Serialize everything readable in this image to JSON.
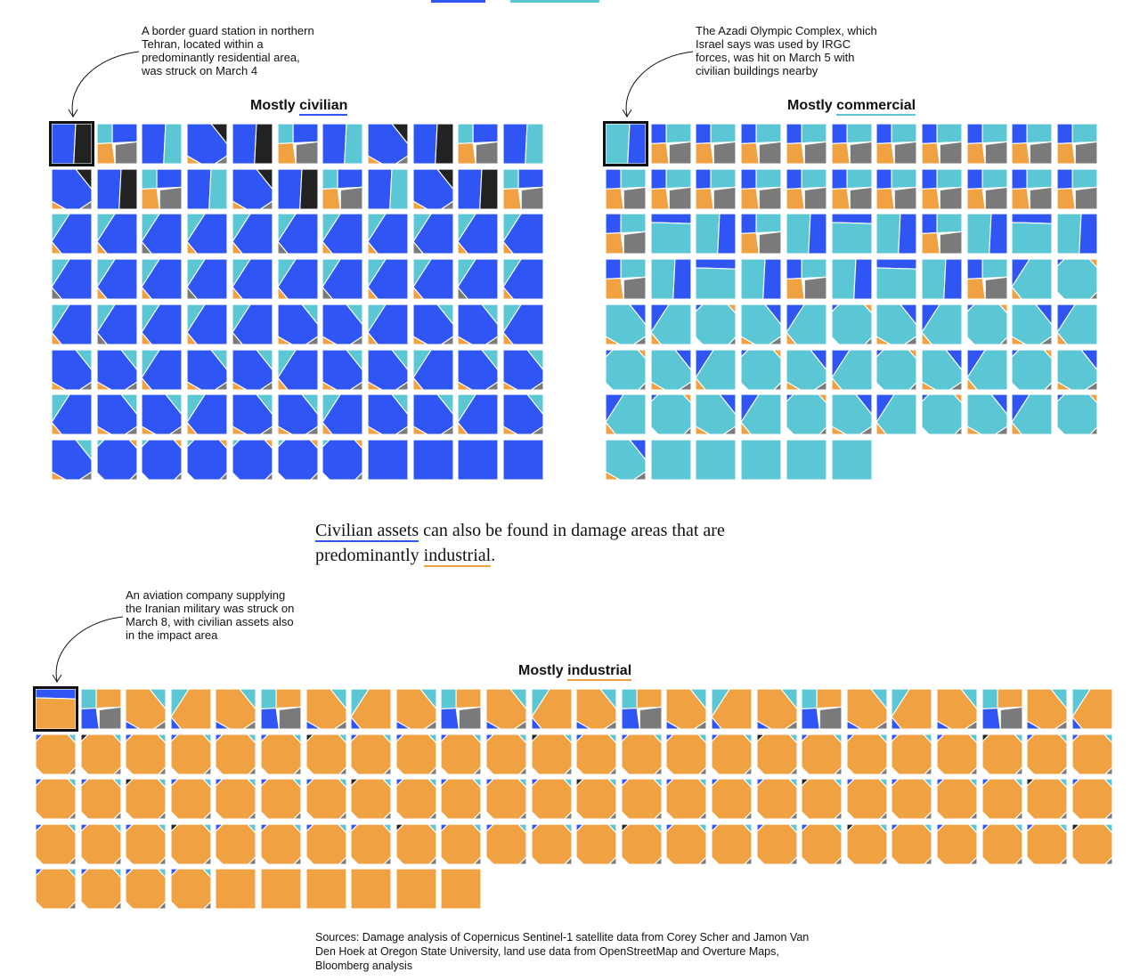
{
  "colors": {
    "civilian": "#2f55f4",
    "commercial": "#5bc6d4",
    "industrial": "#f0a243",
    "military": "#222222",
    "other": "#7a7a7a",
    "tile_border": "#ffffff",
    "highlight": "#111111"
  },
  "top_legend": {
    "civilian_swatch": "civilian",
    "commercial_swatch": "commercial"
  },
  "panels": {
    "civilian": {
      "title_prefix": "Mostly ",
      "title_keyword": "civilian",
      "annotation": "A border guard station in northern Tehran, located within a predominantly residential area, was struck on March 4"
    },
    "commercial": {
      "title_prefix": "Mostly ",
      "title_keyword": "commercial",
      "annotation": "The Azadi Olympic Complex, which Israel says was used by IRGC forces, was hit on March 5 with civilian buildings nearby"
    },
    "industrial": {
      "title_prefix": "Mostly ",
      "title_keyword": "industrial",
      "annotation": "An aviation company supplying the Iranian military was struck on March 8, with civilian assets also in the impact area"
    }
  },
  "prose": {
    "kw1": "Civilian assets",
    "mid": " can also be found in damage areas that are predominantly ",
    "kw2": "industrial",
    "end": "."
  },
  "sources": "Sources: Damage analysis of Copernicus Sentinel-1 satellite data from Corey Scher and Jamon Van Den Hoek at Oregon State University, land use data from OpenStreetMap and Overture Maps, Bloomberg analysis",
  "chart_data": [
    {
      "type": "table",
      "title": "Mostly civilian",
      "unit": "damage area",
      "count": 88,
      "columns": 11,
      "highlighted_index": 0,
      "highlight_note": "Border guard station, northern Tehran, March 4",
      "dominant_category": "civilian",
      "categories_present": [
        "civilian",
        "commercial",
        "industrial",
        "military",
        "other"
      ]
    },
    {
      "type": "table",
      "title": "Mostly commercial",
      "unit": "damage area",
      "count": 83,
      "columns": 11,
      "highlighted_index": 0,
      "highlight_note": "Azadi Olympic Complex, March 5",
      "dominant_category": "commercial",
      "categories_present": [
        "civilian",
        "commercial",
        "industrial",
        "military",
        "other"
      ]
    },
    {
      "type": "table",
      "title": "Mostly industrial",
      "unit": "damage area",
      "count": 106,
      "columns": 24,
      "highlighted_index": 0,
      "highlight_note": "Aviation company supplying Iranian military, March 8",
      "dominant_category": "industrial",
      "categories_present": [
        "civilian",
        "commercial",
        "industrial",
        "military",
        "other"
      ]
    }
  ]
}
